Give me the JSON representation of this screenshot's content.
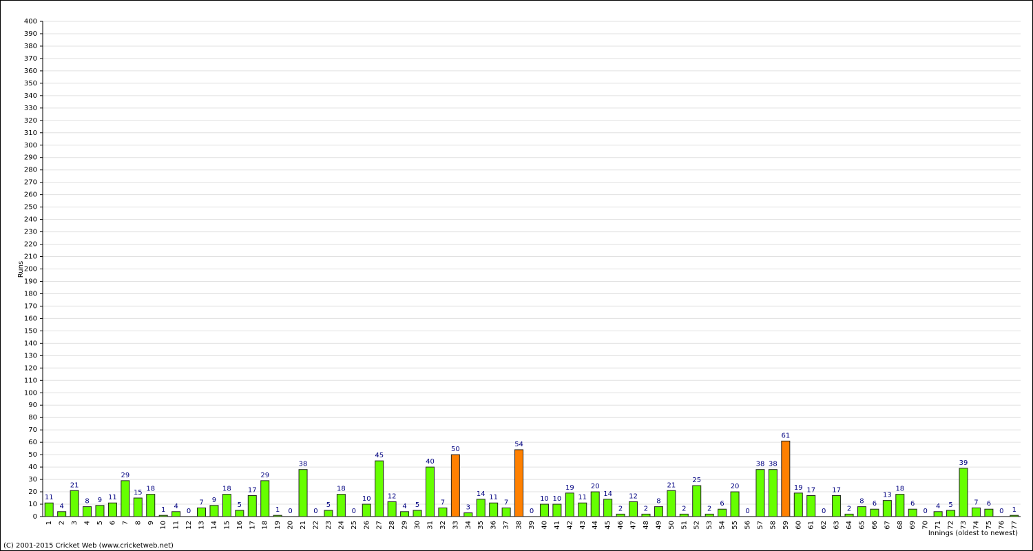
{
  "chart_data": {
    "type": "bar",
    "x_label": "Innings (oldest to newest)",
    "y_label": "Runs",
    "footer": "(C) 2001-2015 Cricket Web (www.cricketweb.net)",
    "categories": [
      "1",
      "2",
      "3",
      "4",
      "5",
      "6",
      "7",
      "8",
      "9",
      "10",
      "11",
      "12",
      "13",
      "14",
      "15",
      "16",
      "17",
      "18",
      "19",
      "20",
      "21",
      "22",
      "23",
      "24",
      "25",
      "26",
      "27",
      "28",
      "29",
      "30",
      "31",
      "32",
      "33",
      "34",
      "35",
      "36",
      "37",
      "38",
      "39",
      "40",
      "41",
      "42",
      "43",
      "44",
      "45",
      "46",
      "47",
      "48",
      "49",
      "50",
      "51",
      "52",
      "53",
      "54",
      "55",
      "56",
      "57",
      "58",
      "59",
      "60",
      "61",
      "62",
      "63",
      "64",
      "65",
      "66",
      "67",
      "68",
      "69",
      "70",
      "71",
      "72",
      "73",
      "74",
      "75",
      "76",
      "77"
    ],
    "values": [
      11,
      4,
      21,
      8,
      9,
      11,
      29,
      15,
      18,
      1,
      4,
      0,
      7,
      9,
      18,
      5,
      17,
      29,
      1,
      0,
      38,
      0,
      5,
      18,
      0,
      10,
      45,
      12,
      4,
      5,
      40,
      7,
      50,
      3,
      14,
      11,
      7,
      54,
      0,
      10,
      10,
      19,
      11,
      20,
      14,
      2,
      12,
      2,
      8,
      21,
      2,
      25,
      2,
      6,
      20,
      0,
      38,
      38,
      61,
      19,
      17,
      0,
      17,
      2,
      8,
      6,
      13,
      18,
      6,
      0,
      4,
      5,
      39,
      7,
      6,
      0,
      1
    ],
    "colors": [
      "#66ff00",
      "#66ff00",
      "#66ff00",
      "#66ff00",
      "#66ff00",
      "#66ff00",
      "#66ff00",
      "#66ff00",
      "#66ff00",
      "#66ff00",
      "#66ff00",
      "#66ff00",
      "#66ff00",
      "#66ff00",
      "#66ff00",
      "#66ff00",
      "#66ff00",
      "#66ff00",
      "#66ff00",
      "#66ff00",
      "#66ff00",
      "#66ff00",
      "#66ff00",
      "#66ff00",
      "#66ff00",
      "#66ff00",
      "#66ff00",
      "#66ff00",
      "#66ff00",
      "#66ff00",
      "#66ff00",
      "#66ff00",
      "#ff8000",
      "#66ff00",
      "#66ff00",
      "#66ff00",
      "#66ff00",
      "#ff8000",
      "#66ff00",
      "#66ff00",
      "#66ff00",
      "#66ff00",
      "#66ff00",
      "#66ff00",
      "#66ff00",
      "#66ff00",
      "#66ff00",
      "#66ff00",
      "#66ff00",
      "#66ff00",
      "#66ff00",
      "#66ff00",
      "#66ff00",
      "#66ff00",
      "#66ff00",
      "#66ff00",
      "#66ff00",
      "#66ff00",
      "#ff8000",
      "#66ff00",
      "#66ff00",
      "#66ff00",
      "#66ff00",
      "#66ff00",
      "#66ff00",
      "#66ff00",
      "#66ff00",
      "#66ff00",
      "#66ff00",
      "#66ff00",
      "#66ff00",
      "#66ff00",
      "#66ff00",
      "#66ff00",
      "#66ff00",
      "#66ff00",
      "#66ff00"
    ],
    "label_color": "#000080",
    "ylim": [
      0,
      400
    ],
    "yticks": [
      0,
      10,
      20,
      30,
      40,
      50,
      60,
      70,
      80,
      90,
      100,
      110,
      120,
      130,
      140,
      150,
      160,
      170,
      180,
      190,
      200,
      210,
      220,
      230,
      240,
      250,
      260,
      270,
      280,
      290,
      300,
      310,
      320,
      330,
      340,
      350,
      360,
      370,
      380,
      390,
      400
    ],
    "grid": true
  }
}
